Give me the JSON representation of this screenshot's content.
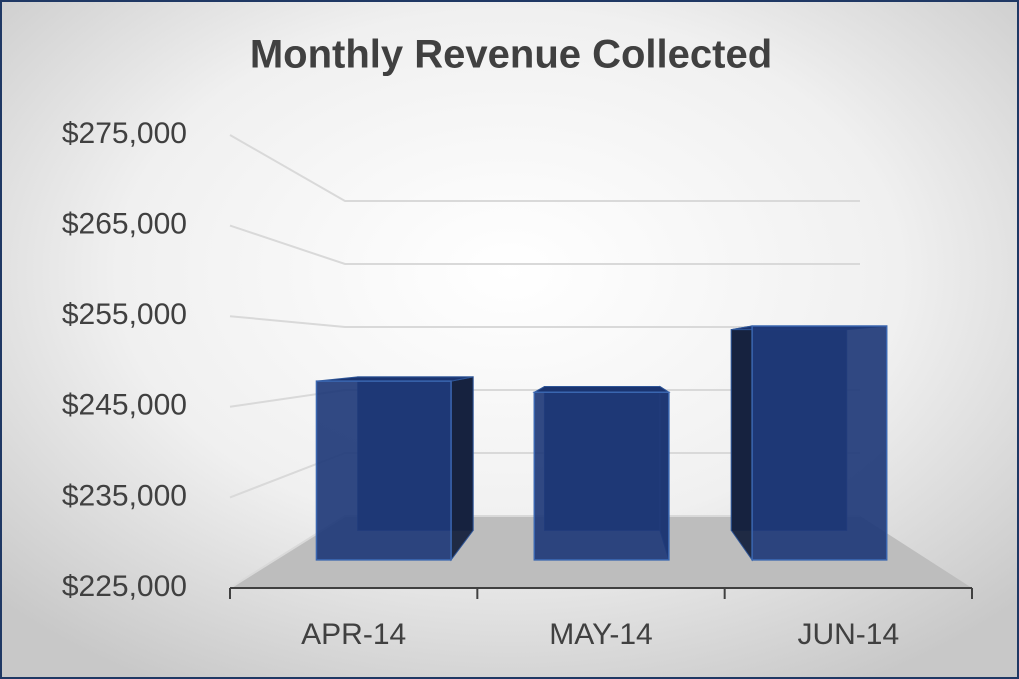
{
  "chart_data": {
    "type": "bar3d",
    "title": "Monthly Revenue Collected",
    "categories": [
      "APR-14",
      "MAY-14",
      "JUN-14"
    ],
    "values": [
      247400,
      246000,
      254300
    ],
    "color": "#1f3a78",
    "ylim": [
      225000,
      275000
    ],
    "yticks": [
      {
        "value": 225000,
        "label": "$225,000"
      },
      {
        "value": 235000,
        "label": "$235,000"
      },
      {
        "value": 245000,
        "label": "$245,000"
      },
      {
        "value": 255000,
        "label": "$255,000"
      },
      {
        "value": 265000,
        "label": "$265,000"
      },
      {
        "value": 275000,
        "label": "$275,000"
      }
    ],
    "grid": true
  }
}
